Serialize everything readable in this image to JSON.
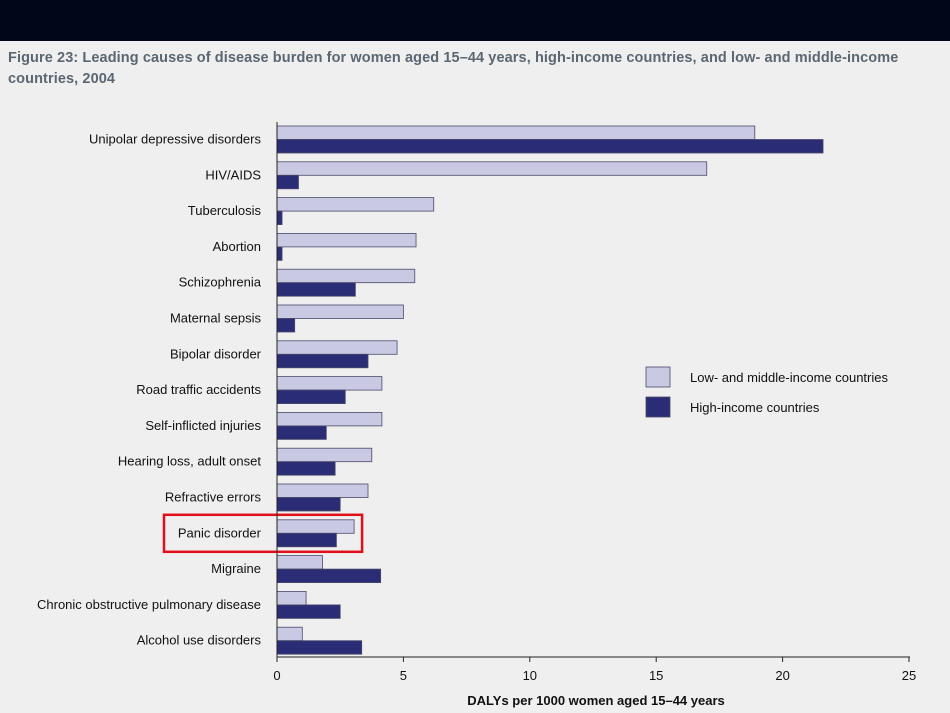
{
  "figure": {
    "title": "Figure 23: Leading causes of disease burden for women aged 15–44 years, high-income countries, and low- and middle-income countries, 2004"
  },
  "colors": {
    "background": "#efefef",
    "top_band": "#010619",
    "title_text": "#5a6672",
    "low_middle_income": "#c9c9e3",
    "high_income": "#2b2c76",
    "highlight_box": "#e0101a"
  },
  "chart_data": {
    "type": "bar",
    "orientation": "horizontal",
    "title": "Figure 23: Leading causes of disease burden for women aged 15–44 years, high-income countries, and low- and middle-income countries, 2004",
    "xlabel": "DALYs per 1000 women aged 15–44 years",
    "ylabel": "",
    "xlim": [
      0,
      25
    ],
    "xticks": [
      0,
      5,
      10,
      15,
      20,
      25
    ],
    "grid": false,
    "legend_position": "right",
    "highlighted_category": "Panic disorder",
    "categories": [
      "Unipolar depressive disorders",
      "HIV/AIDS",
      "Tuberculosis",
      "Abortion",
      "Schizophrenia",
      "Maternal sepsis",
      "Bipolar disorder",
      "Road traffic accidents",
      "Self-inflicted injuries",
      "Hearing loss, adult onset",
      "Refractive errors",
      "Panic disorder",
      "Migraine",
      "Chronic obstructive pulmonary disease",
      "Alcohol use disorders"
    ],
    "series": [
      {
        "name": "Low- and middle-income countries",
        "values": [
          18.9,
          17.0,
          6.2,
          5.5,
          5.45,
          5.0,
          4.75,
          4.15,
          4.15,
          3.75,
          3.6,
          3.05,
          1.8,
          1.15,
          1.0
        ]
      },
      {
        "name": "High-income countries",
        "values": [
          21.6,
          0.85,
          0.2,
          0.2,
          3.1,
          0.7,
          3.6,
          2.7,
          1.95,
          2.3,
          2.5,
          2.35,
          4.1,
          2.5,
          3.35
        ]
      }
    ]
  }
}
